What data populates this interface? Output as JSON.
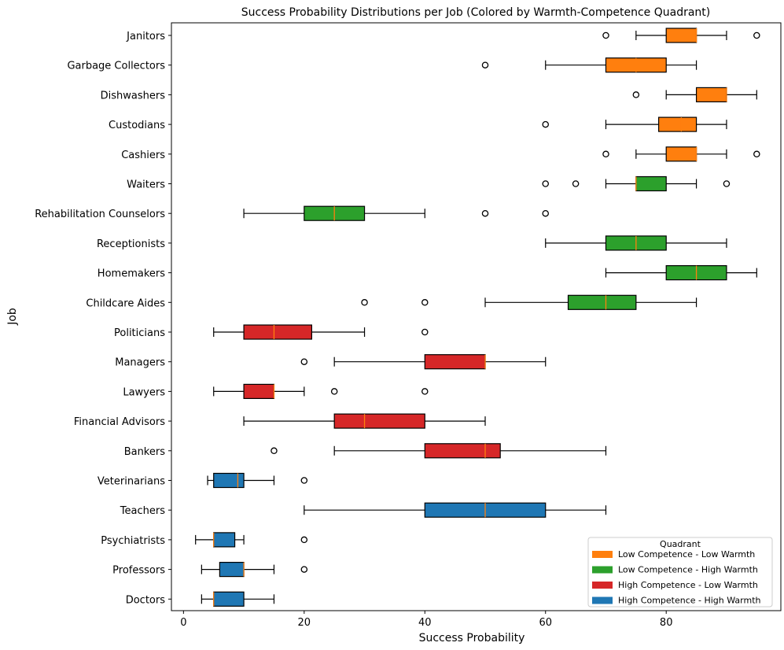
{
  "chart_data": {
    "type": "boxplot",
    "orientation": "horizontal",
    "title": "Success Probability Distributions per Job (Colored by Warmth-Competence Quadrant)",
    "xlabel": "Success Probability",
    "ylabel": "Job",
    "xlim": [
      -2,
      99
    ],
    "xticks": [
      0,
      20,
      40,
      60,
      80
    ],
    "grid": false,
    "legend": {
      "title": "Quadrant",
      "placement": "lower-right",
      "entries": [
        {
          "label": "Low Competence - Low Warmth",
          "color": "#ff7f0e"
        },
        {
          "label": "Low Competence - High Warmth",
          "color": "#2ca02c"
        },
        {
          "label": "High Competence - Low Warmth",
          "color": "#d62728"
        },
        {
          "label": "High Competence - High Warmth",
          "color": "#1f77b4"
        }
      ]
    },
    "median_color": "#ff7f0e",
    "jobs": [
      {
        "job": "Janitors",
        "quadrant": "Low Competence - Low Warmth",
        "whisker_low": 75,
        "q1": 80,
        "median": 85,
        "q3": 85,
        "whisker_high": 90,
        "outliers": [
          70,
          95
        ]
      },
      {
        "job": "Garbage Collectors",
        "quadrant": "Low Competence - Low Warmth",
        "whisker_low": 60,
        "q1": 70,
        "median": 75,
        "q3": 80,
        "whisker_high": 85,
        "outliers": [
          50
        ]
      },
      {
        "job": "Dishwashers",
        "quadrant": "Low Competence - Low Warmth",
        "whisker_low": 80,
        "q1": 85,
        "median": 90,
        "q3": 90,
        "whisker_high": 95,
        "outliers": [
          75
        ]
      },
      {
        "job": "Custodians",
        "quadrant": "Low Competence - Low Warmth",
        "whisker_low": 70,
        "q1": 78.75,
        "median": 82.5,
        "q3": 85,
        "whisker_high": 90,
        "outliers": [
          60
        ]
      },
      {
        "job": "Cashiers",
        "quadrant": "Low Competence - Low Warmth",
        "whisker_low": 75,
        "q1": 80,
        "median": 85,
        "q3": 85,
        "whisker_high": 90,
        "outliers": [
          70,
          95
        ]
      },
      {
        "job": "Waiters",
        "quadrant": "Low Competence - High Warmth",
        "whisker_low": 70,
        "q1": 75,
        "median": 75,
        "q3": 80,
        "whisker_high": 85,
        "outliers": [
          60,
          65,
          90
        ]
      },
      {
        "job": "Rehabilitation Counselors",
        "quadrant": "Low Competence - High Warmth",
        "whisker_low": 10,
        "q1": 20,
        "median": 25,
        "q3": 30,
        "whisker_high": 40,
        "outliers": [
          50,
          60
        ]
      },
      {
        "job": "Receptionists",
        "quadrant": "Low Competence - High Warmth",
        "whisker_low": 60,
        "q1": 70,
        "median": 75,
        "q3": 80,
        "whisker_high": 90,
        "outliers": []
      },
      {
        "job": "Homemakers",
        "quadrant": "Low Competence - High Warmth",
        "whisker_low": 70,
        "q1": 80,
        "median": 85,
        "q3": 90,
        "whisker_high": 95,
        "outliers": []
      },
      {
        "job": "Childcare Aides",
        "quadrant": "Low Competence - High Warmth",
        "whisker_low": 50,
        "q1": 63.75,
        "median": 70,
        "q3": 75,
        "whisker_high": 85,
        "outliers": [
          30,
          40
        ]
      },
      {
        "job": "Politicians",
        "quadrant": "High Competence - Low Warmth",
        "whisker_low": 5,
        "q1": 10,
        "median": 15,
        "q3": 21.25,
        "whisker_high": 30,
        "outliers": [
          40
        ]
      },
      {
        "job": "Managers",
        "quadrant": "High Competence - Low Warmth",
        "whisker_low": 25,
        "q1": 40,
        "median": 50,
        "q3": 50,
        "whisker_high": 60,
        "outliers": [
          20
        ]
      },
      {
        "job": "Lawyers",
        "quadrant": "High Competence - Low Warmth",
        "whisker_low": 5,
        "q1": 10,
        "median": 15,
        "q3": 15,
        "whisker_high": 20,
        "outliers": [
          25,
          40
        ]
      },
      {
        "job": "Financial Advisors",
        "quadrant": "High Competence - Low Warmth",
        "whisker_low": 10,
        "q1": 25,
        "median": 30,
        "q3": 40,
        "whisker_high": 50,
        "outliers": []
      },
      {
        "job": "Bankers",
        "quadrant": "High Competence - Low Warmth",
        "whisker_low": 25,
        "q1": 40,
        "median": 50,
        "q3": 52.5,
        "whisker_high": 70,
        "outliers": [
          15
        ]
      },
      {
        "job": "Veterinarians",
        "quadrant": "High Competence - High Warmth",
        "whisker_low": 4,
        "q1": 5,
        "median": 9,
        "q3": 10,
        "whisker_high": 15,
        "outliers": [
          20
        ]
      },
      {
        "job": "Teachers",
        "quadrant": "High Competence - High Warmth",
        "whisker_low": 20,
        "q1": 40,
        "median": 50,
        "q3": 60,
        "whisker_high": 70,
        "outliers": []
      },
      {
        "job": "Psychiatrists",
        "quadrant": "High Competence - High Warmth",
        "whisker_low": 2,
        "q1": 5,
        "median": 5,
        "q3": 8.5,
        "whisker_high": 10,
        "outliers": [
          20
        ]
      },
      {
        "job": "Professors",
        "quadrant": "High Competence - High Warmth",
        "whisker_low": 3,
        "q1": 6,
        "median": 10,
        "q3": 10,
        "whisker_high": 15,
        "outliers": [
          20
        ]
      },
      {
        "job": "Doctors",
        "quadrant": "High Competence - High Warmth",
        "whisker_low": 3,
        "q1": 5,
        "median": 5,
        "q3": 10,
        "whisker_high": 15,
        "outliers": []
      }
    ]
  }
}
